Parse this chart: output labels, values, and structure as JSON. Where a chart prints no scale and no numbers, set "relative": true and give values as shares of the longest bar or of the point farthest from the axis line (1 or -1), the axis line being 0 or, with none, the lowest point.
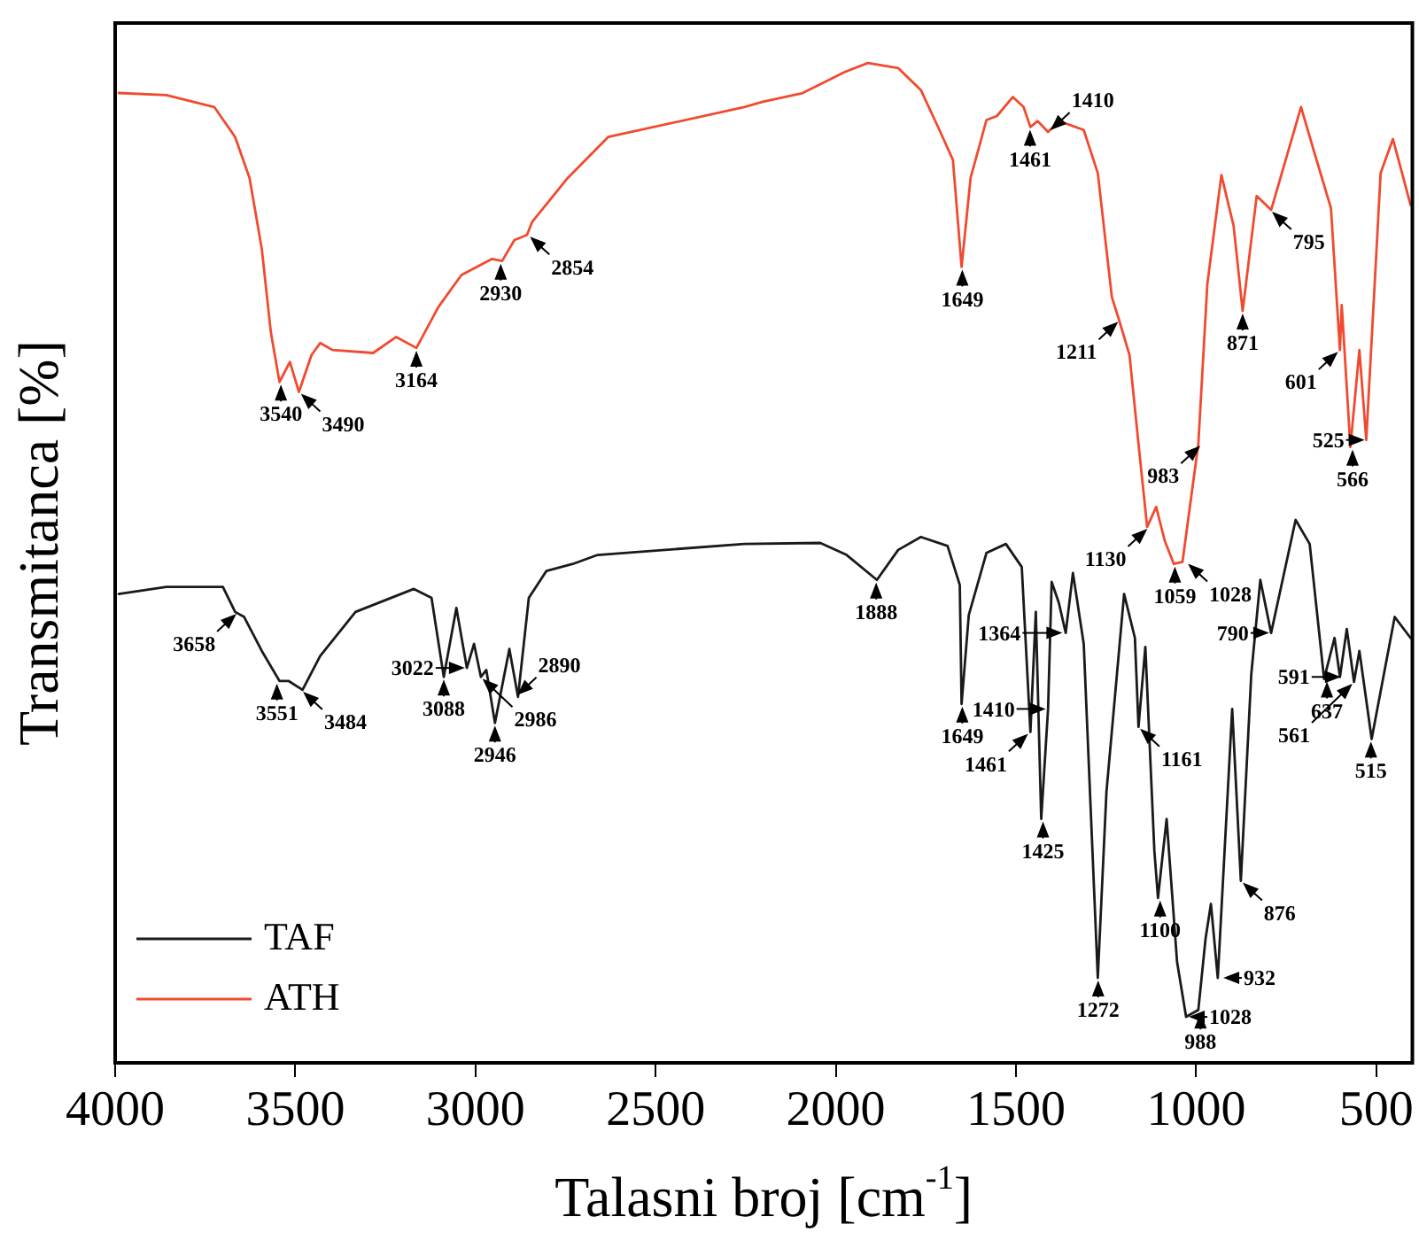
{
  "chart_data": {
    "type": "line",
    "xlabel": "Talasni broj [cm$^{-1}$]",
    "ylabel": "Transmitanca [%]",
    "relative": true,
    "xlim": [
      4000,
      400
    ],
    "xticks": [
      4000,
      3500,
      3000,
      2500,
      2000,
      1500,
      1000,
      500
    ],
    "legend": "bottom left",
    "grid": false,
    "marker": "none",
    "line_style": "solid",
    "series": [
      {
        "name": "TAF",
        "color": "#1a1a1a",
        "x": [
          3990,
          3858,
          3701,
          3667,
          3642,
          3593,
          3544,
          3519,
          3480,
          3431,
          3333,
          3171,
          3122,
          3088,
          3053,
          3024,
          3004,
          2985,
          2970,
          2946,
          2906,
          2882,
          2852,
          2803,
          2730,
          2661,
          2254,
          2043,
          1970,
          1886,
          1827,
          1764,
          1690,
          1656,
          1651,
          1631,
          1582,
          1528,
          1484,
          1460,
          1445,
          1430,
          1411,
          1401,
          1381,
          1362,
          1342,
          1312,
          1273,
          1249,
          1200,
          1170,
          1160,
          1141,
          1116,
          1106,
          1082,
          1053,
          1028,
          994,
          974,
          959,
          940,
          900,
          876,
          847,
          822,
          792,
          724,
          685,
          645,
          616,
          601,
          582,
          562,
          547,
          513,
          449,
          405
        ],
        "values": [
          0.469,
          0.476,
          0.476,
          0.451,
          0.446,
          0.412,
          0.382,
          0.382,
          0.373,
          0.407,
          0.451,
          0.474,
          0.465,
          0.386,
          0.455,
          0.395,
          0.419,
          0.386,
          0.393,
          0.34,
          0.414,
          0.366,
          0.465,
          0.492,
          0.499,
          0.508,
          0.519,
          0.52,
          0.508,
          0.483,
          0.513,
          0.526,
          0.517,
          0.478,
          0.359,
          0.448,
          0.51,
          0.519,
          0.496,
          0.331,
          0.451,
          0.244,
          0.354,
          0.481,
          0.46,
          0.43,
          0.49,
          0.419,
          0.085,
          0.271,
          0.469,
          0.425,
          0.336,
          0.416,
          0.212,
          0.165,
          0.244,
          0.101,
          0.046,
          0.053,
          0.124,
          0.159,
          0.085,
          0.354,
          0.182,
          0.389,
          0.483,
          0.43,
          0.543,
          0.519,
          0.384,
          0.425,
          0.386,
          0.434,
          0.381,
          0.412,
          0.324,
          0.446,
          0.425
        ]
      },
      {
        "name": "ATH",
        "color": "#f04a30",
        "x": [
          3990,
          3858,
          3725,
          3667,
          3627,
          3593,
          3568,
          3544,
          3515,
          3490,
          3455,
          3431,
          3397,
          3284,
          3220,
          3164,
          3103,
          3039,
          2955,
          2926,
          2892,
          2857,
          2843,
          2744,
          2632,
          2254,
          2205,
          2092,
          1975,
          1911,
          1827,
          1764,
          1715,
          1675,
          1651,
          1626,
          1582,
          1553,
          1509,
          1479,
          1460,
          1440,
          1411,
          1381,
          1312,
          1273,
          1234,
          1214,
          1185,
          1160,
          1136,
          1111,
          1087,
          1062,
          1038,
          994,
          969,
          930,
          896,
          871,
          832,
          792,
          709,
          670,
          626,
          601,
          596,
          572,
          547,
          528,
          488,
          454,
          405
        ],
        "values": [
          0.97,
          0.968,
          0.956,
          0.926,
          0.885,
          0.814,
          0.731,
          0.681,
          0.701,
          0.671,
          0.708,
          0.72,
          0.713,
          0.71,
          0.726,
          0.715,
          0.756,
          0.788,
          0.804,
          0.802,
          0.823,
          0.828,
          0.841,
          0.885,
          0.926,
          0.956,
          0.961,
          0.97,
          0.991,
          1.0,
          0.995,
          0.973,
          0.935,
          0.903,
          0.796,
          0.885,
          0.943,
          0.947,
          0.966,
          0.956,
          0.936,
          0.942,
          0.931,
          0.942,
          0.933,
          0.89,
          0.766,
          0.743,
          0.708,
          0.619,
          0.536,
          0.556,
          0.522,
          0.499,
          0.501,
          0.619,
          0.779,
          0.888,
          0.837,
          0.752,
          0.867,
          0.853,
          0.956,
          0.908,
          0.855,
          0.713,
          0.758,
          0.616,
          0.713,
          0.623,
          0.89,
          0.924,
          0.858
        ]
      }
    ],
    "annotations": [
      {
        "text": "3540",
        "x": 3540,
        "y": 0.681
      },
      {
        "text": "3490",
        "x": 3490,
        "y": 0.671
      },
      {
        "text": "3164",
        "x": 3164,
        "y": 0.715
      },
      {
        "text": "2930",
        "x": 2930,
        "y": 0.802
      },
      {
        "text": "2854",
        "x": 2854,
        "y": 0.828
      },
      {
        "text": "1649",
        "x": 1649,
        "y": 0.796
      },
      {
        "text": "1461",
        "x": 1461,
        "y": 0.936
      },
      {
        "text": "1410",
        "x": 1410,
        "y": 0.931
      },
      {
        "text": "1211",
        "x": 1211,
        "y": 0.743
      },
      {
        "text": "1130",
        "x": 1130,
        "y": 0.536
      },
      {
        "text": "1059",
        "x": 1059,
        "y": 0.499
      },
      {
        "text": "1028",
        "x": 1028,
        "y": 0.501
      },
      {
        "text": "983",
        "x": 983,
        "y": 0.619
      },
      {
        "text": "871",
        "x": 871,
        "y": 0.752
      },
      {
        "text": "795",
        "x": 795,
        "y": 0.853
      },
      {
        "text": "601",
        "x": 601,
        "y": 0.713
      },
      {
        "text": "566",
        "x": 566,
        "y": 0.616
      },
      {
        "text": "525",
        "x": 525,
        "y": 0.623
      },
      {
        "text": "3658",
        "x": 3658,
        "y": 0.451
      },
      {
        "text": "3551",
        "x": 3551,
        "y": 0.382
      },
      {
        "text": "3484",
        "x": 3484,
        "y": 0.373
      },
      {
        "text": "3088",
        "x": 3088,
        "y": 0.386
      },
      {
        "text": "3022",
        "x": 3022,
        "y": 0.395
      },
      {
        "text": "2986",
        "x": 2986,
        "y": 0.386
      },
      {
        "text": "2946",
        "x": 2946,
        "y": 0.34
      },
      {
        "text": "2890",
        "x": 2890,
        "y": 0.366
      },
      {
        "text": "1888",
        "x": 1888,
        "y": 0.483
      },
      {
        "text": "1649",
        "x": 1649,
        "y": 0.359
      },
      {
        "text": "1461",
        "x": 1461,
        "y": 0.331
      },
      {
        "text": "1425",
        "x": 1425,
        "y": 0.244
      },
      {
        "text": "1410",
        "x": 1410,
        "y": 0.354
      },
      {
        "text": "1364",
        "x": 1364,
        "y": 0.43
      },
      {
        "text": "1272",
        "x": 1272,
        "y": 0.085
      },
      {
        "text": "1161",
        "x": 1161,
        "y": 0.336
      },
      {
        "text": "1100",
        "x": 1100,
        "y": 0.165
      },
      {
        "text": "1028",
        "x": 1028,
        "y": 0.046
      },
      {
        "text": "988",
        "x": 988,
        "y": 0.053
      },
      {
        "text": "932",
        "x": 932,
        "y": 0.085
      },
      {
        "text": "876",
        "x": 876,
        "y": 0.182
      },
      {
        "text": "790",
        "x": 790,
        "y": 0.43
      },
      {
        "text": "637",
        "x": 637,
        "y": 0.384
      },
      {
        "text": "591",
        "x": 591,
        "y": 0.386
      },
      {
        "text": "561",
        "x": 561,
        "y": 0.381
      },
      {
        "text": "515",
        "x": 515,
        "y": 0.324
      }
    ]
  }
}
